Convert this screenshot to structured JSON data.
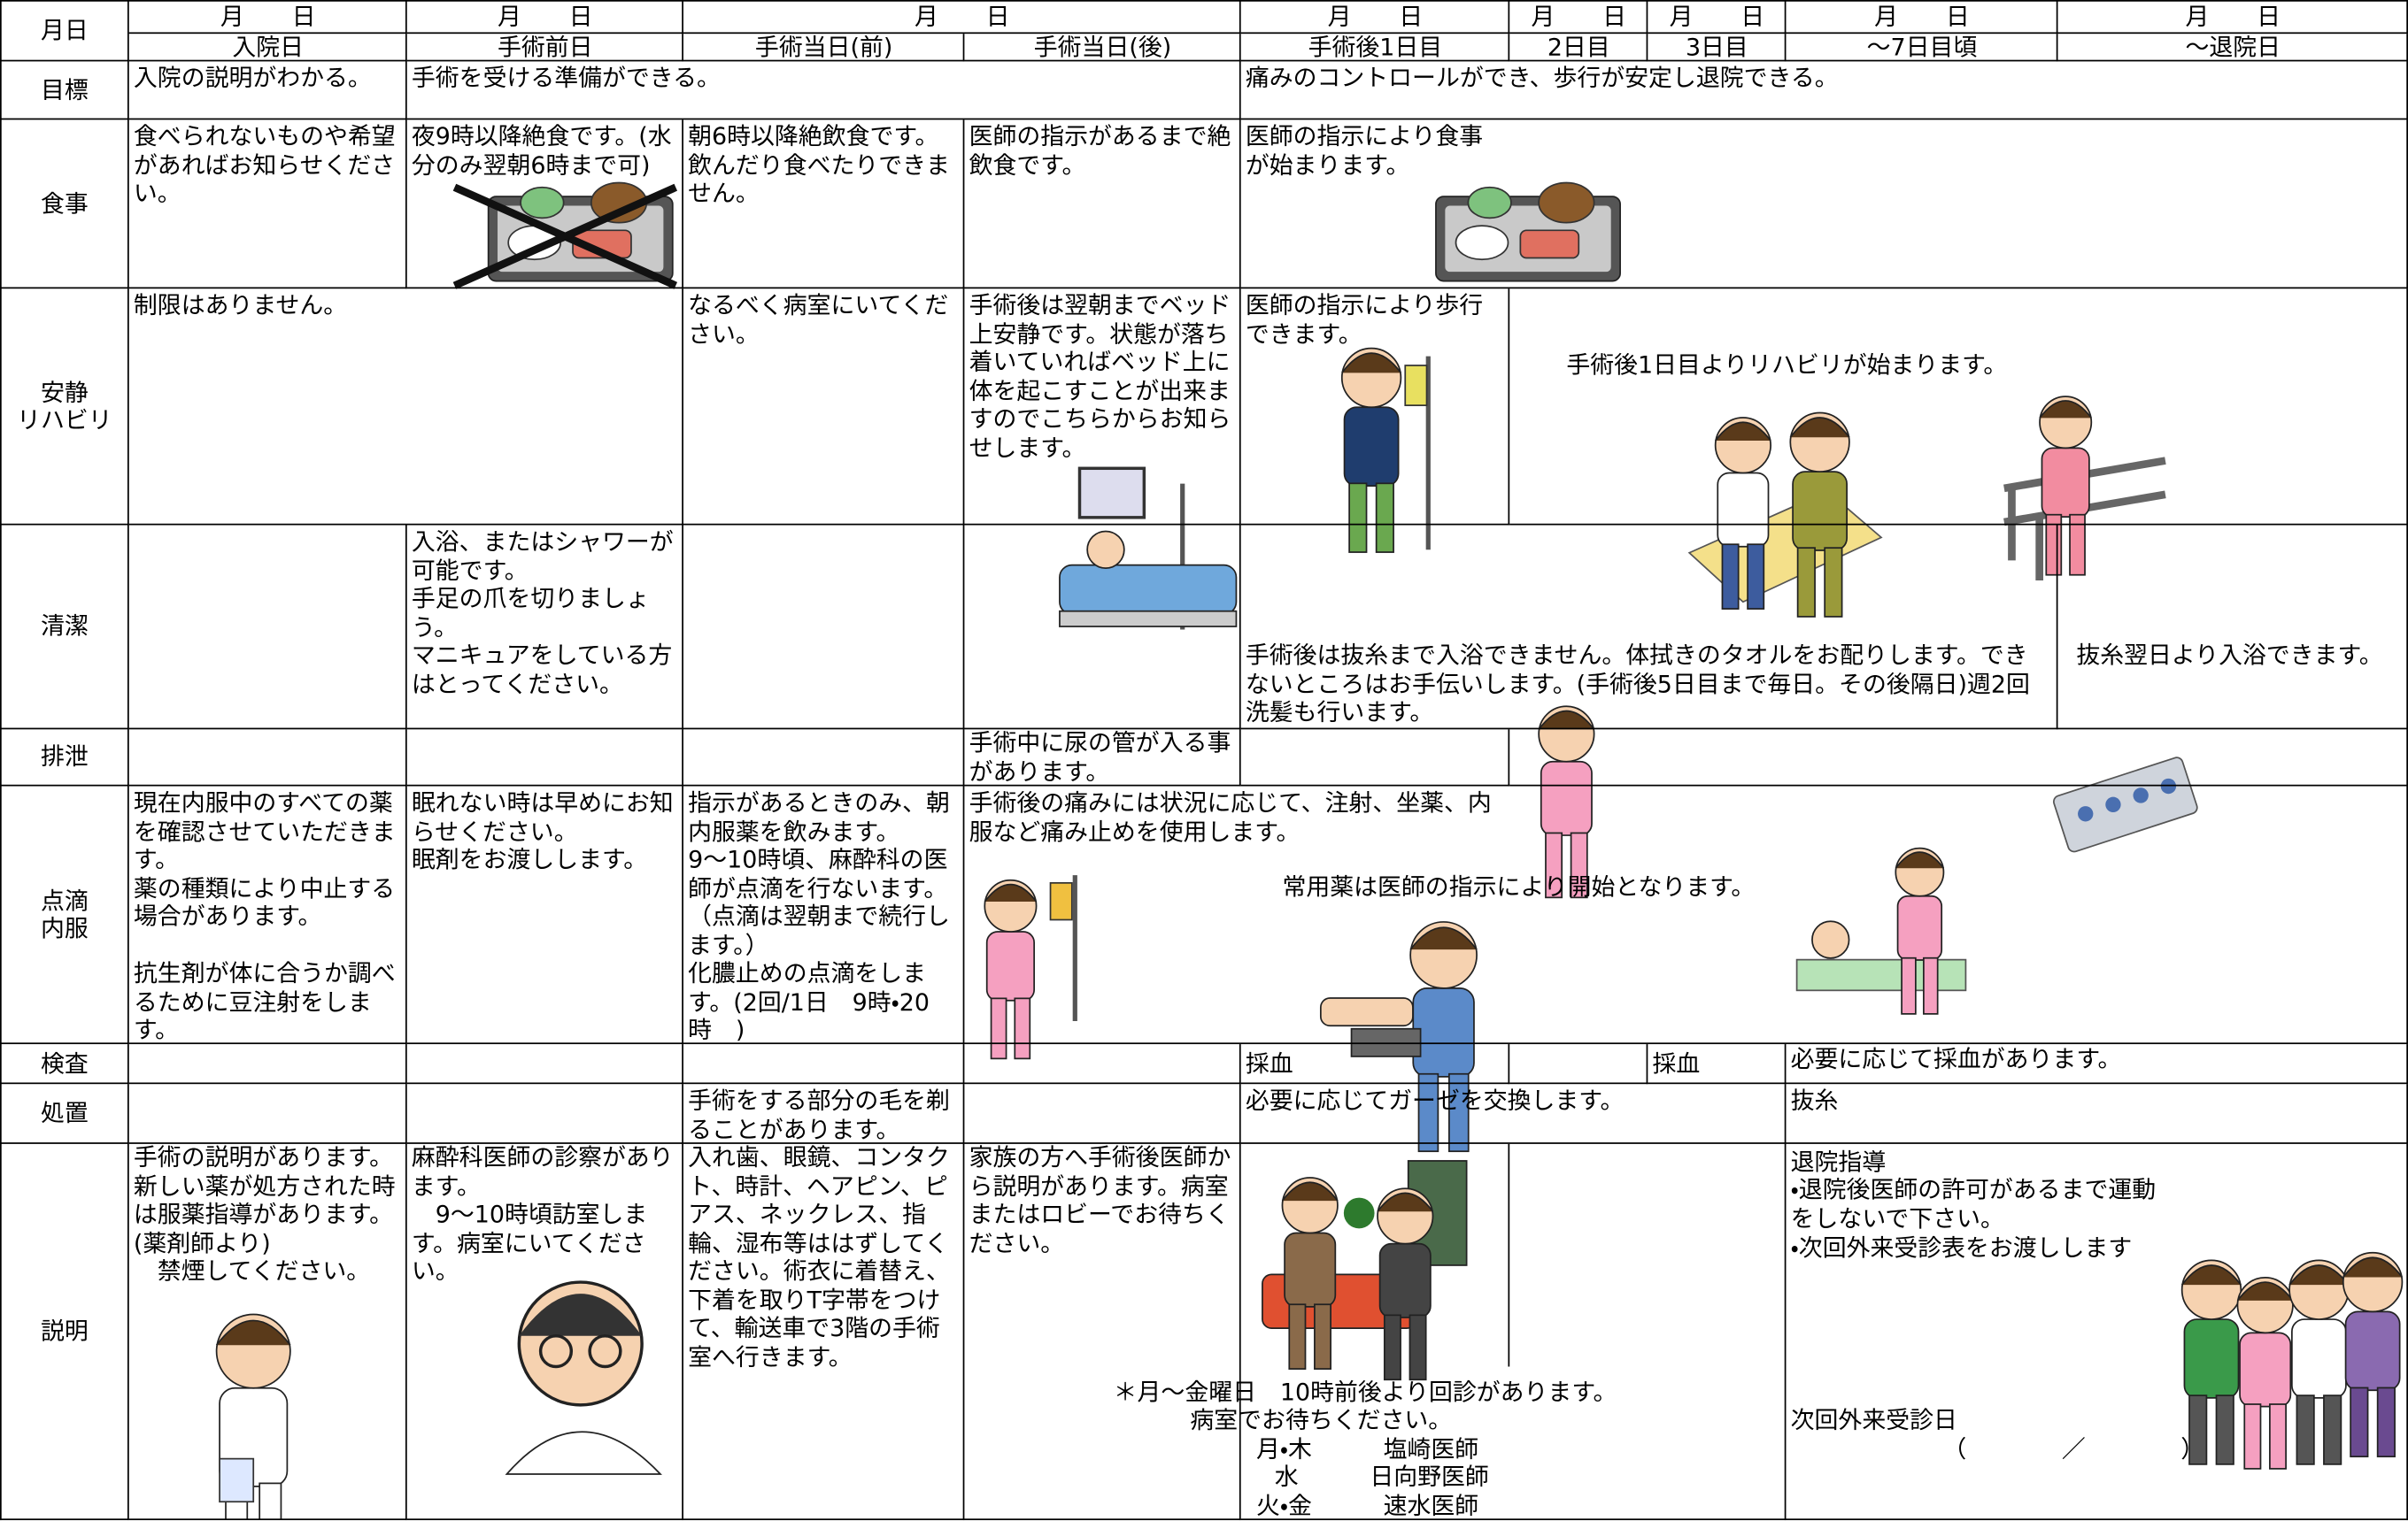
{
  "header": {
    "corner": "月日",
    "dates": [
      "月　　日",
      "月　　日",
      "月　　日",
      "月　　日",
      "月　　日",
      "月　　日",
      "月　　日",
      "月　　日"
    ],
    "days": [
      "入院日",
      "手術前日",
      "手術当日(前)",
      "手術当日(後)",
      "手術後1日目",
      "2日目",
      "3日目",
      "～7日目頃",
      "～退院日"
    ]
  },
  "rows": [
    {
      "label": "目標",
      "cells": [
        "入院の説明がわかる。",
        "手術を受ける準備ができる。",
        "痛みのコントロールができ、歩行が安定し退院できる。"
      ]
    },
    {
      "label": "食事",
      "cells": [
        "食べられないものや希望があればお知らせください。",
        "夜9時以降絶食です。(水分のみ翌朝6時まで可)",
        "朝6時以降絶飲食です。飲んだり食べたりできません。",
        "医師の指示があるまで絶飲食です。",
        "医師の指示により食事が始まります。"
      ]
    },
    {
      "label": "安静\nリハビリ",
      "cells": [
        "制限はありません。",
        "なるべく病室にいてください。",
        "手術後は翌朝までベッド上安静です。状態が落ち着いていればベッド上に体を起こすことが出来ますのでこちらからお知らせします。",
        "医師の指示により歩行できます。",
        "手術後1日目よりリハビリが始まります。"
      ]
    },
    {
      "label": "清潔",
      "cells": [
        "入浴、またはシャワーが可能です。\n手足の爪を切りましょう。\nマニキュアをしている方はとってください。",
        "手術後は抜糸まで入浴できません。体拭きのタオルをお配りします。できないところはお手伝いします。(手術後5日目まで毎日。その後隔日)週2回洗髪も行います。",
        "抜糸翌日より入浴できます。"
      ]
    },
    {
      "label": "排泄",
      "cells": [
        "手術中に尿の管が入る事があります。"
      ]
    },
    {
      "label": "点滴\n内服",
      "cells": [
        "現在内服中のすべての薬を確認させていただきます。\n薬の種類により中止する場合があります。\n\n抗生剤が体に合うか調べるために豆注射をします。",
        "眠れない時は早めにお知らせください。\n眠剤をお渡しします。",
        "指示があるときのみ、朝内服薬を飲みます。\n9～10時頃、麻酔科の医師が点滴を行ないます。（点滴は翌朝まで続行します。）\n化膿止めの点滴をします。(2回/1日　9時・20時　)",
        "手術後の痛みには状況に応じて、注射、坐薬、内服など痛み止めを使用します。",
        "常用薬は医師の指示により開始となります。"
      ]
    },
    {
      "label": "検査",
      "cells": [
        "採血",
        "採血",
        "必要に応じて採血があります。"
      ]
    },
    {
      "label": "処置",
      "cells": [
        "手術をする部分の毛を剃ることがあります。",
        "必要に応じてガーゼを交換します。",
        "抜糸"
      ]
    },
    {
      "label": "説明",
      "cells": [
        "手術の説明があります。新しい薬が処方された時は服薬指導があります。(薬剤師より)\n　禁煙してください。",
        "麻酔科医師の診察があります。\n　9～10時頃訪室します。病室にいてください。",
        "入れ歯、眼鏡、コンタクト、時計、ヘアピン、ピアス、ネックレス、指輪、湿布等ははずしてください。術衣に着替え、下着を取りT字帯をつけて、輸送車で3階の手術室へ行きます。",
        "家族の方へ手術後医師から説明があります。病室またはロビーでお待ちください。",
        "＊月～金曜日　10時前後より回診があります。",
        "病室でお待ちください。",
        "月・木　　　塩崎医師",
        "水　　　日向野医師",
        "火・金　　　速水医師",
        "退院指導",
        "・退院後医師の許可があるまで運動をしないで下さい。",
        "・次回外来受診表をお渡しします",
        "次回外来受診日",
        "（　　　　／　　　　）"
      ]
    }
  ]
}
